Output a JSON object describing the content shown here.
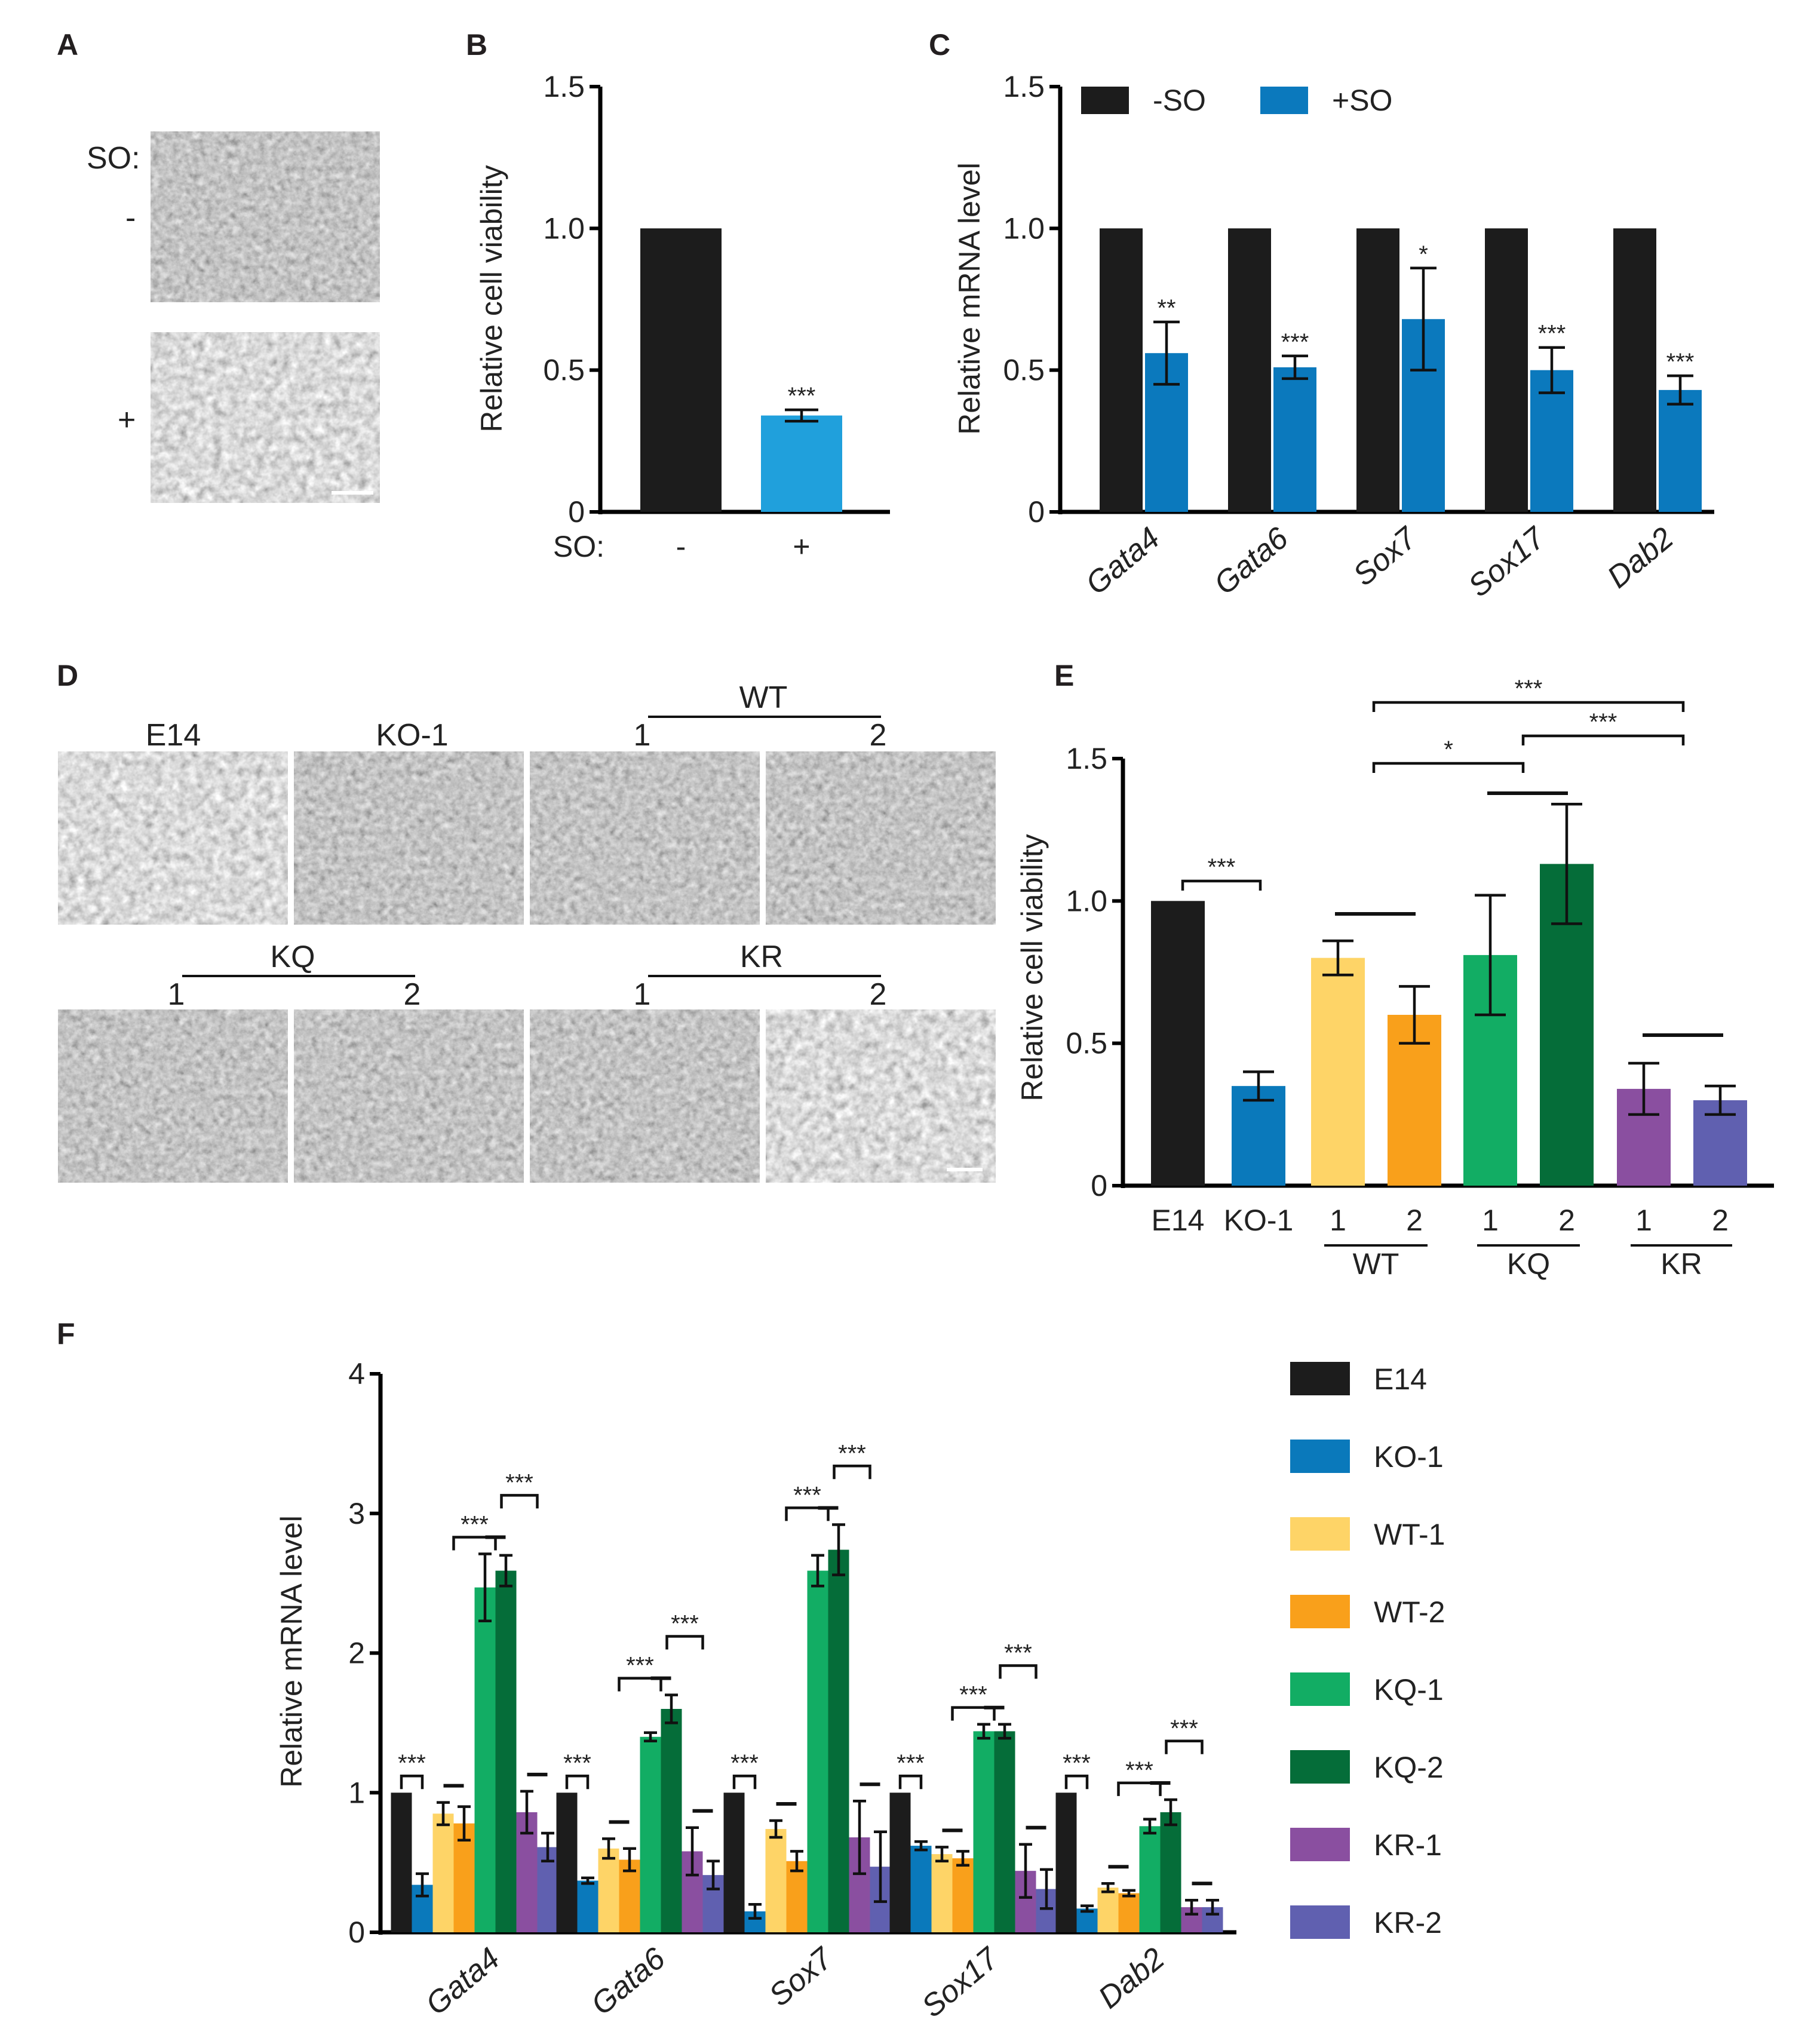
{
  "panel_labels": {
    "a": "A",
    "b": "B",
    "c": "C",
    "d": "D",
    "e": "E",
    "f": "F"
  },
  "colors": {
    "E14": "#1c1c1c",
    "KO-1": "#0a79bb",
    "WT-1": "#fed467",
    "WT-2": "#f9a01b",
    "KQ-1": "#12ad64",
    "KQ-2": "#056d39",
    "KR-1": "#8a4fa0",
    "KR-2": "#6060b0",
    "plus_so_b": "#20a0dc",
    "plus_so_c": "#0b79bd"
  },
  "panel_a": {
    "so_label": "SO:",
    "minus": "-",
    "plus": "+"
  },
  "panel_d": {
    "row1": [
      "E14",
      "KO-1",
      "1",
      "2"
    ],
    "row1_group": "WT",
    "row2": [
      "1",
      "2",
      "1",
      "2"
    ],
    "row2_groups": [
      "KQ",
      "KR"
    ]
  },
  "chart_data": [
    {
      "panel": "B",
      "type": "bar",
      "ylabel": "Relative cell viability",
      "ylim": [
        0,
        1.5
      ],
      "yticks": [
        "0",
        "0.5",
        "1.0",
        "1.5"
      ],
      "yticks_values": [
        0,
        0.5,
        1.0,
        1.5
      ],
      "xlabel_prefix": "SO:",
      "categories": [
        "-",
        "+"
      ],
      "values": [
        1.0,
        0.34
      ],
      "errors": [
        0,
        0.02
      ],
      "significance": [
        "",
        "***"
      ]
    },
    {
      "panel": "C",
      "type": "bar",
      "ylabel": "Relative mRNA level",
      "ylim": [
        0,
        1.5
      ],
      "yticks": [
        "0",
        "0.5",
        "1.0",
        "1.5"
      ],
      "yticks_values": [
        0,
        0.5,
        1.0,
        1.5
      ],
      "categories": [
        "Gata4",
        "Gata6",
        "Sox7",
        "Sox17",
        "Dab2"
      ],
      "legend_position": "top",
      "series": [
        {
          "name": "-SO",
          "values": [
            1.0,
            1.0,
            1.0,
            1.0,
            1.0
          ],
          "errors": [
            0,
            0,
            0,
            0,
            0
          ]
        },
        {
          "name": "+SO",
          "values": [
            0.56,
            0.51,
            0.68,
            0.5,
            0.43
          ],
          "errors": [
            0.11,
            0.04,
            0.18,
            0.08,
            0.05
          ]
        }
      ],
      "significance": [
        "**",
        "***",
        "*",
        "***",
        "***"
      ]
    },
    {
      "panel": "E",
      "type": "bar",
      "ylabel": "Relative cell viability",
      "ylim": [
        0,
        1.5
      ],
      "yticks": [
        "0",
        "0.5",
        "1.0",
        "1.5"
      ],
      "yticks_values": [
        0,
        0.5,
        1.0,
        1.5
      ],
      "categories": [
        "E14",
        "KO-1",
        "1",
        "2",
        "1",
        "2",
        "1",
        "2"
      ],
      "groups": [
        "WT",
        "KQ",
        "KR"
      ],
      "series_names": [
        "E14",
        "KO-1",
        "WT-1",
        "WT-2",
        "KQ-1",
        "KQ-2",
        "KR-1",
        "KR-2"
      ],
      "values": [
        1.0,
        0.35,
        0.8,
        0.6,
        0.81,
        1.13,
        0.34,
        0.3
      ],
      "errors": [
        0,
        0.05,
        0.06,
        0.1,
        0.21,
        0.21,
        0.09,
        0.05
      ],
      "significance": [
        {
          "label": "***",
          "between": "E14 vs KO-1"
        },
        {
          "label": "*",
          "between": "WT vs KQ"
        },
        {
          "label": "***",
          "between": "KQ vs KR"
        },
        {
          "label": "***",
          "between": "WT vs KR"
        }
      ]
    },
    {
      "panel": "F",
      "type": "bar",
      "ylabel": "Relative mRNA level",
      "ylim": [
        0,
        4
      ],
      "yticks": [
        "0",
        "1",
        "2",
        "3",
        "4"
      ],
      "yticks_values": [
        0,
        1,
        2,
        3,
        4
      ],
      "categories": [
        "Gata4",
        "Gata6",
        "Sox7",
        "Sox17",
        "Dab2"
      ],
      "legend_position": "right",
      "series": [
        {
          "name": "E14",
          "values": [
            1.0,
            1.0,
            1.0,
            1.0,
            1.0
          ],
          "errors": [
            0,
            0,
            0,
            0,
            0
          ]
        },
        {
          "name": "KO-1",
          "values": [
            0.34,
            0.37,
            0.15,
            0.62,
            0.17
          ],
          "errors": [
            0.08,
            0.02,
            0.05,
            0.03,
            0.02
          ]
        },
        {
          "name": "WT-1",
          "values": [
            0.85,
            0.6,
            0.74,
            0.56,
            0.32
          ],
          "errors": [
            0.08,
            0.07,
            0.06,
            0.05,
            0.03
          ]
        },
        {
          "name": "WT-2",
          "values": [
            0.78,
            0.52,
            0.51,
            0.53,
            0.28
          ],
          "errors": [
            0.12,
            0.08,
            0.07,
            0.05,
            0.02
          ]
        },
        {
          "name": "KQ-1",
          "values": [
            2.47,
            1.4,
            2.59,
            1.44,
            0.76
          ],
          "errors": [
            0.24,
            0.03,
            0.11,
            0.05,
            0.05
          ]
        },
        {
          "name": "KQ-2",
          "values": [
            2.59,
            1.6,
            2.74,
            1.44,
            0.86
          ],
          "errors": [
            0.11,
            0.1,
            0.18,
            0.05,
            0.09
          ]
        },
        {
          "name": "KR-1",
          "values": [
            0.86,
            0.58,
            0.68,
            0.44,
            0.18
          ],
          "errors": [
            0.15,
            0.17,
            0.26,
            0.19,
            0.05
          ]
        },
        {
          "name": "KR-2",
          "values": [
            0.61,
            0.41,
            0.47,
            0.31,
            0.18
          ],
          "errors": [
            0.1,
            0.1,
            0.25,
            0.14,
            0.05
          ]
        }
      ],
      "significance_label": "***"
    }
  ]
}
